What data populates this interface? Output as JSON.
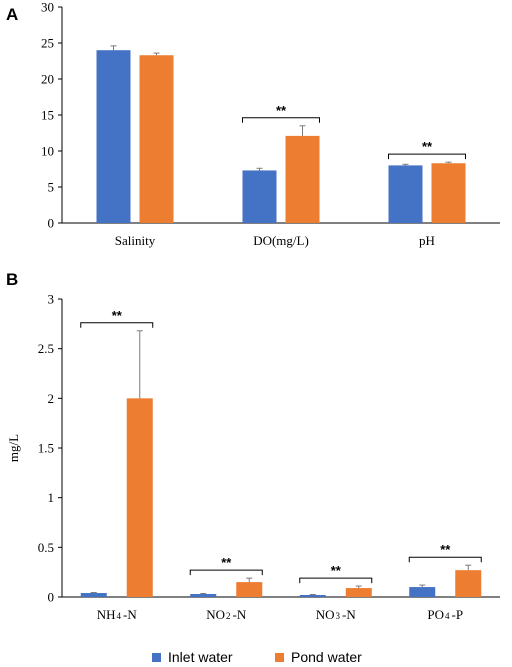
{
  "chart_data": [
    {
      "panel": "A",
      "type": "bar",
      "categories": [
        [
          "Salinity"
        ],
        [
          "DO(mg/L)"
        ],
        [
          "pH"
        ]
      ],
      "series": [
        {
          "name": "Inlet water",
          "color": "#4472C4",
          "values": [
            24.0,
            7.3,
            8.0
          ],
          "errors": [
            0.6,
            0.3,
            0.15
          ]
        },
        {
          "name": "Pond water",
          "color": "#ED7D31",
          "values": [
            23.3,
            12.1,
            8.3
          ],
          "errors": [
            0.3,
            1.4,
            0.15
          ]
        }
      ],
      "ylim": [
        0,
        30
      ],
      "yticks": [
        0,
        5,
        10,
        15,
        20,
        25,
        30
      ],
      "ylabel": "",
      "significance": [
        {
          "category": 1,
          "label": "**"
        },
        {
          "category": 2,
          "label": "**"
        }
      ]
    },
    {
      "panel": "B",
      "type": "bar",
      "categories": [
        [
          "NH",
          "4",
          "-N"
        ],
        [
          "NO",
          "2",
          "-N"
        ],
        [
          "NO",
          "3",
          "-N"
        ],
        [
          "PO",
          "4",
          "-P"
        ]
      ],
      "series": [
        {
          "name": "Inlet water",
          "color": "#4472C4",
          "values": [
            0.04,
            0.03,
            0.02,
            0.1
          ],
          "errors": [
            0.005,
            0.005,
            0.005,
            0.02
          ]
        },
        {
          "name": "Pond water",
          "color": "#ED7D31",
          "values": [
            2.0,
            0.15,
            0.09,
            0.27
          ],
          "errors": [
            0.68,
            0.04,
            0.02,
            0.05
          ]
        }
      ],
      "ylim": [
        0,
        3
      ],
      "yticks": [
        0,
        0.5,
        1,
        1.5,
        2,
        2.5,
        3
      ],
      "ylabel": "mg/L",
      "significance": [
        {
          "category": 0,
          "label": "**"
        },
        {
          "category": 1,
          "label": "**"
        },
        {
          "category": 2,
          "label": "**"
        },
        {
          "category": 3,
          "label": "**"
        }
      ]
    }
  ],
  "legend": [
    {
      "label": "Inlet water",
      "color": "#4472C4"
    },
    {
      "label": "Pond water",
      "color": "#ED7D31"
    }
  ]
}
